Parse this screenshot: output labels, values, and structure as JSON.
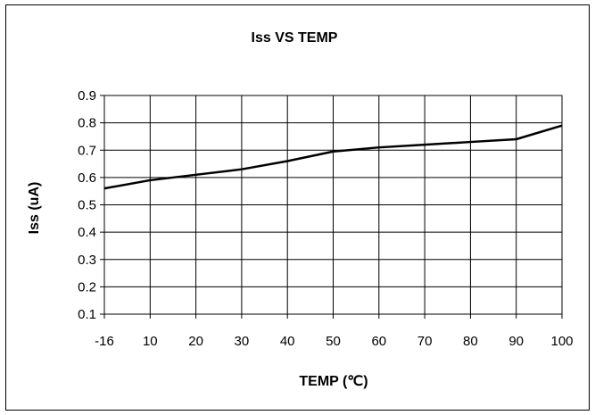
{
  "chart_data": {
    "type": "line",
    "title": "Iss VS TEMP",
    "xlabel": "TEMP (℃)",
    "ylabel": "Iss (uA)",
    "categories": [
      "-16",
      "10",
      "20",
      "30",
      "40",
      "50",
      "60",
      "70",
      "80",
      "90",
      "100"
    ],
    "yticks": [
      "0.1",
      "0.2",
      "0.3",
      "0.4",
      "0.5",
      "0.6",
      "0.7",
      "0.8",
      "0.9"
    ],
    "ylim": [
      0.1,
      0.9
    ],
    "grid": true,
    "legend": "none",
    "series": [
      {
        "values": [
          0.56,
          0.59,
          0.61,
          0.63,
          0.66,
          0.695,
          0.71,
          0.72,
          0.73,
          0.74,
          0.79
        ],
        "color": "#000000"
      }
    ]
  }
}
